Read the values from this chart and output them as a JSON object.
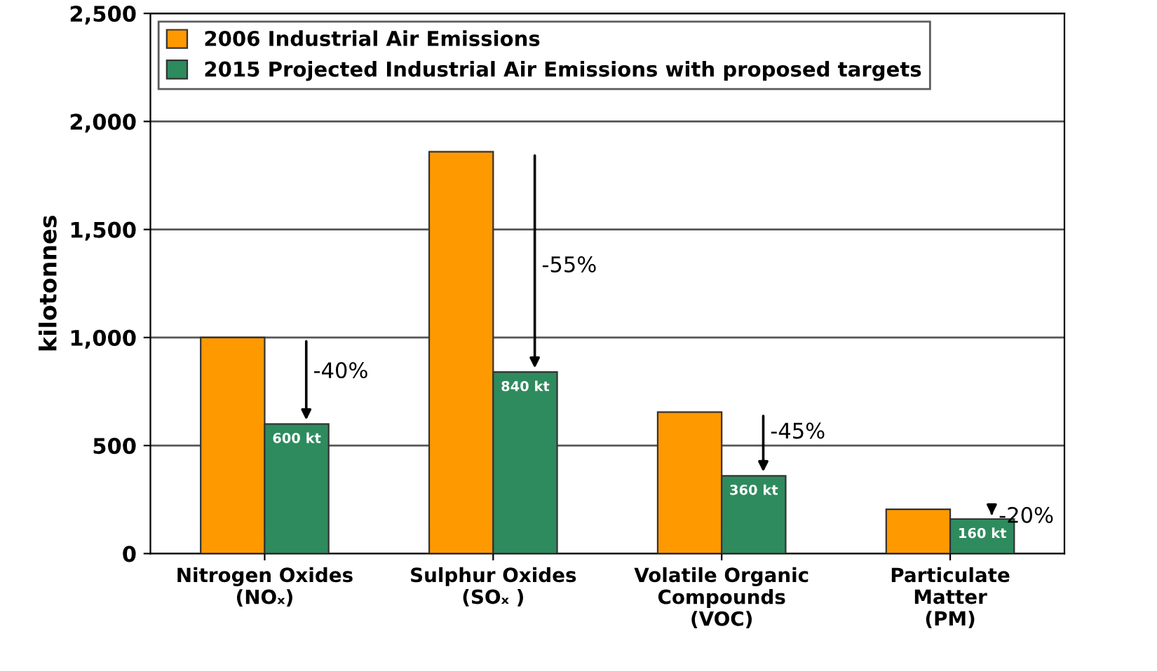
{
  "chart_data": {
    "type": "bar",
    "ylabel": "kilotonnes",
    "categories": [
      "Nitrogen Oxides\n(NOₓ)",
      "Sulphur Oxides\n(SOₓ )",
      "Volatile Organic\nCompounds\n(VOC)",
      "Particulate\nMatter\n(PM)"
    ],
    "series": [
      {
        "name": "2006 Industrial Air Emissions",
        "color": "#ff9900",
        "values": [
          1000,
          1860,
          655,
          205
        ]
      },
      {
        "name": "2015 Projected Industrial Air Emissions with proposed targets",
        "color": "#2e8b5e",
        "values": [
          600,
          840,
          360,
          160
        ],
        "value_labels": [
          "600 kt",
          "840 kt",
          "360 kt",
          "160 kt"
        ]
      }
    ],
    "annotations": [
      {
        "text": "-40%",
        "x": "Nitrogen Oxides\n(NOₓ)",
        "y": 840
      },
      {
        "text": "-55%",
        "x": "Sulphur Oxides\n(SOₓ )",
        "y": 1330
      },
      {
        "text": "-45%",
        "x": "Volatile Organic\nCompounds\n(VOC)",
        "y": 560
      },
      {
        "text": "-20%",
        "x": "Particulate\nMatter\n(PM)",
        "y": 170
      }
    ],
    "ylim": [
      0,
      2500
    ],
    "yticks": [
      0,
      {
        "value": 500,
        "label": "500"
      },
      {
        "value": 1000,
        "label": "1,000"
      },
      {
        "value": 1500,
        "label": "1,500"
      },
      {
        "value": 2000,
        "label": "2,000"
      },
      {
        "value": 2500,
        "label": "2,500"
      }
    ],
    "grid": "y",
    "legend": "top left"
  }
}
